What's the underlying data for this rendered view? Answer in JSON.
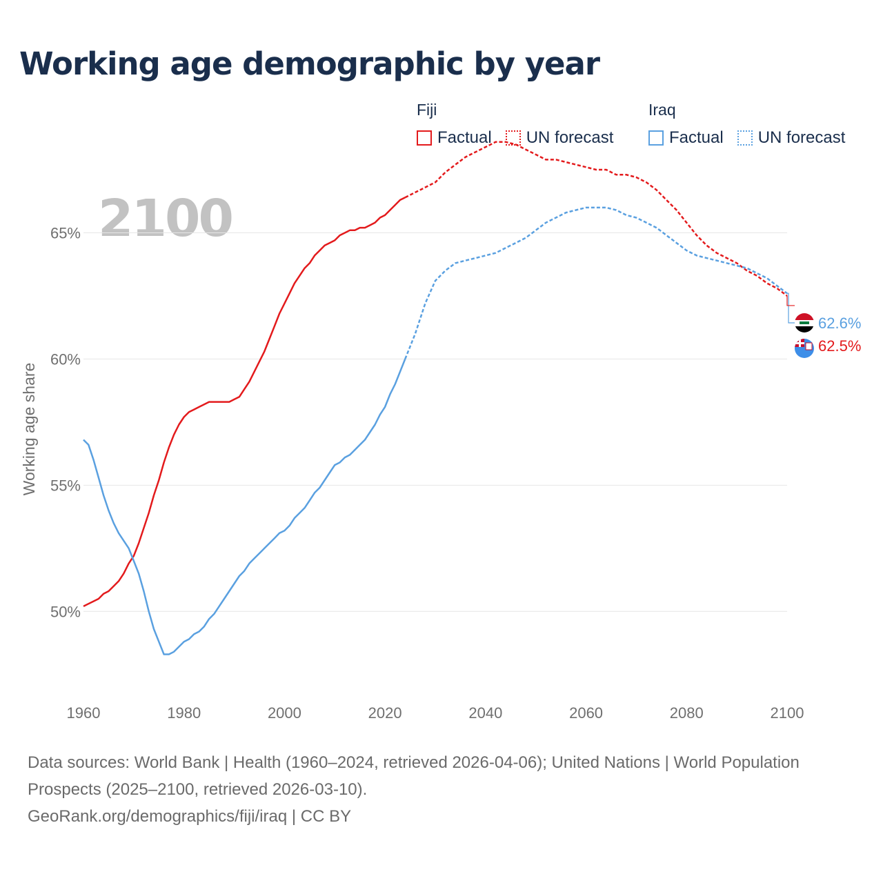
{
  "chart_data": {
    "type": "line",
    "title": "Working age demographic by year",
    "current_year_label": "2100",
    "ylabel": "Working age share",
    "xlabel": "",
    "xlim": [
      1960,
      2100
    ],
    "ylim": [
      46.7,
      67.5
    ],
    "x_ticks": [
      1960,
      1980,
      2000,
      2020,
      2040,
      2060,
      2080,
      2100
    ],
    "x_tick_labels": [
      "1960",
      "1980",
      "2000",
      "2020",
      "2040",
      "2060",
      "2080",
      "2100"
    ],
    "y_ticks": [
      50,
      55,
      60,
      65
    ],
    "y_tick_labels": [
      "50%",
      "55%",
      "60%",
      "65%"
    ],
    "grid": true,
    "legend": {
      "groups": [
        {
          "country": "Fiji",
          "items": [
            {
              "label": "Factual",
              "style": "solid"
            },
            {
              "label": "UN forecast",
              "style": "dotted"
            }
          ]
        },
        {
          "country": "Iraq",
          "items": [
            {
              "label": "Factual",
              "style": "solid"
            },
            {
              "label": "UN forecast",
              "style": "dotted"
            }
          ]
        }
      ]
    },
    "series": [
      {
        "name": "Fiji",
        "color": "#e31a1c",
        "factual": {
          "x": [
            1960,
            1962,
            1963,
            1964,
            1965,
            1966,
            1967,
            1968,
            1969,
            1970,
            1971,
            1972,
            1973,
            1974,
            1975,
            1976,
            1977,
            1978,
            1979,
            1980,
            1981,
            1982,
            1983,
            1984,
            1985,
            1986,
            1987,
            1988,
            1989,
            1990,
            1991,
            1992,
            1993,
            1994,
            1995,
            1996,
            1997,
            1998,
            1999,
            2000,
            2001,
            2002,
            2003,
            2004,
            2005,
            2006,
            2007,
            2008,
            2009,
            2010,
            2011,
            2012,
            2013,
            2014,
            2015,
            2016,
            2017,
            2018,
            2019,
            2020,
            2021,
            2022,
            2023,
            2024
          ],
          "y": [
            50.2,
            50.4,
            50.5,
            50.7,
            50.8,
            51.0,
            51.2,
            51.5,
            51.9,
            52.2,
            52.7,
            53.3,
            53.9,
            54.6,
            55.2,
            55.9,
            56.5,
            57.0,
            57.4,
            57.7,
            57.9,
            58.0,
            58.1,
            58.2,
            58.3,
            58.3,
            58.3,
            58.3,
            58.3,
            58.4,
            58.5,
            58.8,
            59.1,
            59.5,
            59.9,
            60.3,
            60.8,
            61.3,
            61.8,
            62.2,
            62.6,
            63.0,
            63.3,
            63.6,
            63.8,
            64.1,
            64.3,
            64.5,
            64.6,
            64.7,
            64.9,
            65.0,
            65.1,
            65.1,
            65.2,
            65.2,
            65.3,
            65.4,
            65.6,
            65.7,
            65.9,
            66.1,
            66.3,
            66.4
          ]
        },
        "forecast": {
          "x": [
            2024,
            2026,
            2028,
            2030,
            2032,
            2034,
            2036,
            2038,
            2040,
            2042,
            2044,
            2046,
            2048,
            2050,
            2052,
            2054,
            2056,
            2058,
            2060,
            2062,
            2064,
            2066,
            2068,
            2070,
            2072,
            2074,
            2076,
            2078,
            2080,
            2082,
            2084,
            2086,
            2088,
            2090,
            2092,
            2094,
            2096,
            2098,
            2100
          ],
          "y": [
            66.4,
            66.6,
            66.8,
            67.0,
            67.4,
            67.7,
            68.0,
            68.2,
            68.4,
            68.6,
            68.6,
            68.5,
            68.3,
            68.1,
            67.9,
            67.9,
            67.8,
            67.7,
            67.6,
            67.5,
            67.5,
            67.3,
            67.3,
            67.2,
            67.0,
            66.7,
            66.3,
            65.9,
            65.4,
            64.9,
            64.5,
            64.2,
            64.0,
            63.8,
            63.5,
            63.3,
            63.0,
            62.8,
            62.5
          ]
        },
        "end_value": 62.5,
        "end_label": "62.5%",
        "flag": "fiji-flag-icon"
      },
      {
        "name": "Iraq",
        "color": "#5aa0e0",
        "factual": {
          "x": [
            1960,
            1961,
            1962,
            1963,
            1964,
            1965,
            1966,
            1967,
            1968,
            1969,
            1970,
            1971,
            1972,
            1973,
            1974,
            1975,
            1976,
            1977,
            1978,
            1979,
            1980,
            1981,
            1982,
            1983,
            1984,
            1985,
            1986,
            1987,
            1988,
            1989,
            1990,
            1991,
            1992,
            1993,
            1994,
            1995,
            1996,
            1997,
            1998,
            1999,
            2000,
            2001,
            2002,
            2003,
            2004,
            2005,
            2006,
            2007,
            2008,
            2009,
            2010,
            2011,
            2012,
            2013,
            2014,
            2015,
            2016,
            2017,
            2018,
            2019,
            2020,
            2021,
            2022,
            2023,
            2024
          ],
          "y": [
            56.8,
            56.6,
            56.0,
            55.3,
            54.6,
            54.0,
            53.5,
            53.1,
            52.8,
            52.5,
            52.0,
            51.5,
            50.8,
            50.0,
            49.3,
            48.8,
            48.3,
            48.3,
            48.4,
            48.6,
            48.8,
            48.9,
            49.1,
            49.2,
            49.4,
            49.7,
            49.9,
            50.2,
            50.5,
            50.8,
            51.1,
            51.4,
            51.6,
            51.9,
            52.1,
            52.3,
            52.5,
            52.7,
            52.9,
            53.1,
            53.2,
            53.4,
            53.7,
            53.9,
            54.1,
            54.4,
            54.7,
            54.9,
            55.2,
            55.5,
            55.8,
            55.9,
            56.1,
            56.2,
            56.4,
            56.6,
            56.8,
            57.1,
            57.4,
            57.8,
            58.1,
            58.6,
            59.0,
            59.5,
            60.0
          ]
        },
        "forecast": {
          "x": [
            2024,
            2026,
            2028,
            2030,
            2032,
            2034,
            2036,
            2038,
            2040,
            2042,
            2044,
            2046,
            2048,
            2050,
            2052,
            2054,
            2056,
            2058,
            2060,
            2062,
            2064,
            2066,
            2068,
            2070,
            2072,
            2074,
            2076,
            2078,
            2080,
            2082,
            2084,
            2086,
            2088,
            2090,
            2092,
            2094,
            2096,
            2098,
            2100
          ],
          "y": [
            60.0,
            61.0,
            62.2,
            63.1,
            63.5,
            63.8,
            63.9,
            64.0,
            64.1,
            64.2,
            64.4,
            64.6,
            64.8,
            65.1,
            65.4,
            65.6,
            65.8,
            65.9,
            66.0,
            66.0,
            66.0,
            65.9,
            65.7,
            65.6,
            65.4,
            65.2,
            64.9,
            64.6,
            64.3,
            64.1,
            64.0,
            63.9,
            63.8,
            63.7,
            63.6,
            63.4,
            63.2,
            62.9,
            62.6
          ]
        },
        "end_value": 62.6,
        "end_label": "62.6%",
        "flag": "iraq-flag-icon"
      }
    ]
  },
  "footer": {
    "sources": "Data sources: World Bank | Health (1960–2024, retrieved 2026-04-06); United Nations | World Population Prospects (2025–2100, retrieved 2026-03-10).",
    "attribution": "GeoRank.org/demographics/fiji/iraq | CC BY"
  }
}
